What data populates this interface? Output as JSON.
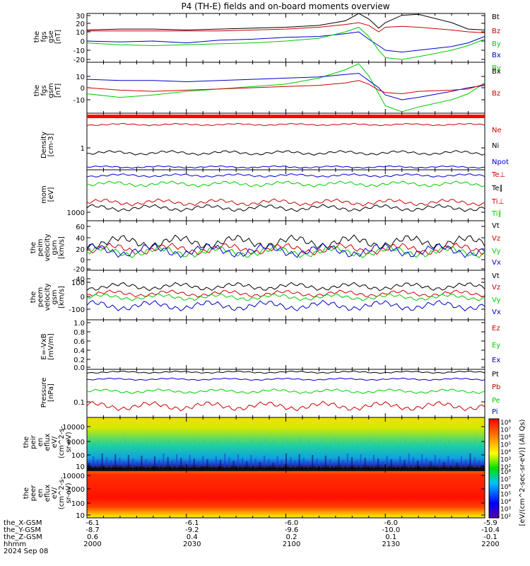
{
  "title": "P4 (TH-E) fields and on-board moments overview",
  "panels": [
    {
      "id": "fgs-gse",
      "ylabel": [
        "the",
        "fgs",
        "gse",
        "[nT]"
      ],
      "ticks": [
        "30",
        "20",
        "10",
        "0",
        "-10",
        "-20"
      ],
      "legend": [
        {
          "text": "Bt",
          "color": "#000000"
        },
        {
          "text": "Bz",
          "color": "#cc0000"
        },
        {
          "text": "By",
          "color": "#00cc00"
        },
        {
          "text": "Bx",
          "color": "#0000cc"
        }
      ]
    },
    {
      "id": "fgs-gsm",
      "ylabel": [
        "the",
        "fgs",
        "gsm",
        "[nT]"
      ],
      "ticks": [
        "10",
        "0",
        "-10"
      ],
      "legend": [
        {
          "text": "By",
          "color": "#00cc00"
        },
        {
          "text": "Bx",
          "color": "#000000"
        },
        {
          "text": "Bz",
          "color": "#cc0000"
        }
      ]
    },
    {
      "id": "density",
      "ylabel": [
        "Density",
        "[cm-3]"
      ],
      "ticks": [
        "1"
      ],
      "legend": [
        {
          "text": "Ne",
          "color": "#cc0000"
        },
        {
          "text": "Ni",
          "color": "#000000"
        },
        {
          "text": "Npot",
          "color": "#0000cc"
        }
      ]
    },
    {
      "id": "temp",
      "ylabel": [
        "mom",
        "[eV]"
      ],
      "ticks": [
        "1000"
      ],
      "legend": [
        {
          "text": "Te⊥",
          "color": "#cc0000"
        },
        {
          "text": "Te∥",
          "color": "#000000"
        },
        {
          "text": "Ti⊥",
          "color": "#cc0000"
        },
        {
          "text": "Ti∥",
          "color": "#00cc00"
        }
      ]
    },
    {
      "id": "peim-vel",
      "ylabel": [
        "the",
        "peim",
        "velocity",
        "gsm",
        "[km/s]"
      ],
      "ticks": [
        "60",
        "40",
        "20",
        "0",
        "-20",
        "-40"
      ],
      "legend": [
        {
          "text": "Vt",
          "color": "#000000"
        },
        {
          "text": "Vz",
          "color": "#cc0000"
        },
        {
          "text": "Vy",
          "color": "#00cc00"
        },
        {
          "text": "Vx",
          "color": "#0000cc"
        }
      ]
    },
    {
      "id": "peem-vel",
      "ylabel": [
        "the",
        "peem",
        "velocity",
        "gsm",
        "[km/s]"
      ],
      "ticks": [
        "100",
        "0",
        "-100"
      ],
      "legend": [
        {
          "text": "Vt",
          "color": "#000000"
        },
        {
          "text": "Vz",
          "color": "#cc0000"
        },
        {
          "text": "Vy",
          "color": "#00cc00"
        },
        {
          "text": "Vx",
          "color": "#0000cc"
        }
      ]
    },
    {
      "id": "efield",
      "ylabel": [
        "E=-VxB",
        "[mV/m]"
      ],
      "ticks": [
        "1.0",
        "0.8",
        "0.6",
        "0.4",
        "0.2",
        "0.0"
      ],
      "legend": [
        {
          "text": "Ez",
          "color": "#cc0000"
        },
        {
          "text": "Ey",
          "color": "#00cc00"
        },
        {
          "text": "Ex",
          "color": "#0000cc"
        }
      ]
    },
    {
      "id": "pressure",
      "ylabel": [
        "Pressure",
        "[nPa]"
      ],
      "ticks": [
        "0.1"
      ],
      "legend": [
        {
          "text": "Pt",
          "color": "#000000"
        },
        {
          "text": "Pb",
          "color": "#cc0000"
        },
        {
          "text": "Pe",
          "color": "#00cc00"
        },
        {
          "text": "Pi",
          "color": "#0000cc"
        }
      ]
    },
    {
      "id": "peir",
      "ylabel": [
        "the",
        "peir",
        "en",
        "eflux",
        "eV/",
        "(cm^2-s-",
        "sr-eV)"
      ],
      "ticks": [
        "10000",
        "1000",
        "100",
        "10"
      ],
      "legend": []
    },
    {
      "id": "peer",
      "ylabel": [
        "the",
        "peer",
        "en",
        "eflux",
        "eV/",
        "(cm^2-s-",
        "sr-eV)"
      ],
      "ticks": [
        "10000",
        "1000",
        "100",
        "10"
      ],
      "legend": []
    }
  ],
  "colorbar": {
    "label": "[eV/(cm^2-sec-sr-eV)] (All Qs)",
    "top_ticks": [
      "10⁸",
      "10⁷",
      "10⁶",
      "10⁵",
      "10⁴",
      "10³",
      "10²"
    ],
    "bottom_ticks": [
      "10⁸",
      "10⁷",
      "10⁶",
      "10⁵",
      "10⁴",
      "10³",
      "10²"
    ]
  },
  "xaxis": {
    "row_labels": [
      "the_X-GSM",
      "the_Y-GSM",
      "the_Z-GSM",
      "hhmm",
      "2024 Sep 08"
    ],
    "columns": [
      {
        "vals": [
          "-6.1",
          "-8.7",
          "0.6",
          "2000"
        ]
      },
      {
        "vals": [
          "-6.1",
          "-9.2",
          "0.4",
          "2030"
        ]
      },
      {
        "vals": [
          "-6.0",
          "-9.6",
          "0.2",
          "2100"
        ]
      },
      {
        "vals": [
          "-6.0",
          "-10.0",
          "0.1",
          "2130"
        ]
      },
      {
        "vals": [
          "-5.9",
          "-10.4",
          "-0.1",
          "2200"
        ]
      }
    ]
  },
  "chart_data": {
    "type": "line",
    "title": "P4 (TH-E) fields and on-board moments overview",
    "x_ticks": [
      "2000",
      "2030",
      "2100",
      "2130",
      "2200"
    ],
    "x_unit": "hhmm",
    "date": "2024 Sep 08",
    "series": {
      "fgs-gse": {
        "Bt": [
          [
            2000,
            12
          ],
          [
            2010,
            13
          ],
          [
            2020,
            13
          ],
          [
            2030,
            12
          ],
          [
            2040,
            13
          ],
          [
            2050,
            14
          ],
          [
            2100,
            15
          ],
          [
            2110,
            17
          ],
          [
            2118,
            22
          ],
          [
            2122,
            30
          ],
          [
            2125,
            24
          ],
          [
            2128,
            14
          ],
          [
            2130,
            20
          ],
          [
            2135,
            28
          ],
          [
            2140,
            29
          ],
          [
            2150,
            20
          ],
          [
            2155,
            13
          ],
          [
            2200,
            12
          ]
        ],
        "Bz": [
          [
            2000,
            11
          ],
          [
            2010,
            11
          ],
          [
            2020,
            11
          ],
          [
            2030,
            11
          ],
          [
            2040,
            11
          ],
          [
            2050,
            12
          ],
          [
            2100,
            13
          ],
          [
            2110,
            15
          ],
          [
            2118,
            18
          ],
          [
            2122,
            20
          ],
          [
            2125,
            17
          ],
          [
            2128,
            10
          ],
          [
            2130,
            15
          ],
          [
            2135,
            16
          ],
          [
            2140,
            15
          ],
          [
            2150,
            12
          ],
          [
            2155,
            10
          ],
          [
            2200,
            9
          ]
        ],
        "Bx": [
          [
            2000,
            0
          ],
          [
            2010,
            -1
          ],
          [
            2020,
            0
          ],
          [
            2030,
            -2
          ],
          [
            2040,
            1
          ],
          [
            2050,
            2
          ],
          [
            2100,
            4
          ],
          [
            2110,
            5
          ],
          [
            2118,
            8
          ],
          [
            2122,
            10
          ],
          [
            2125,
            2
          ],
          [
            2128,
            -5
          ],
          [
            2130,
            -10
          ],
          [
            2135,
            -12
          ],
          [
            2140,
            -10
          ],
          [
            2150,
            -6
          ],
          [
            2155,
            -2
          ],
          [
            2200,
            5
          ]
        ],
        "By": [
          [
            2000,
            -2
          ],
          [
            2010,
            -4
          ],
          [
            2020,
            -5
          ],
          [
            2030,
            -4
          ],
          [
            2040,
            -3
          ],
          [
            2050,
            -2
          ],
          [
            2100,
            0
          ],
          [
            2110,
            3
          ],
          [
            2118,
            10
          ],
          [
            2122,
            15
          ],
          [
            2125,
            5
          ],
          [
            2128,
            -10
          ],
          [
            2130,
            -18
          ],
          [
            2135,
            -20
          ],
          [
            2140,
            -17
          ],
          [
            2150,
            -10
          ],
          [
            2155,
            -5
          ],
          [
            2200,
            2
          ]
        ]
      },
      "fgs-gsm": {
        "By": [
          [
            2000,
            -5
          ],
          [
            2010,
            -8
          ],
          [
            2020,
            -6
          ],
          [
            2030,
            -3
          ],
          [
            2040,
            -1
          ],
          [
            2050,
            1
          ],
          [
            2100,
            3
          ],
          [
            2110,
            8
          ],
          [
            2118,
            15
          ],
          [
            2122,
            20
          ],
          [
            2125,
            10
          ],
          [
            2128,
            -5
          ],
          [
            2130,
            -15
          ],
          [
            2135,
            -20
          ],
          [
            2140,
            -16
          ],
          [
            2150,
            -10
          ],
          [
            2155,
            -5
          ],
          [
            2200,
            4
          ]
        ],
        "Bx": [
          [
            2000,
            7
          ],
          [
            2010,
            6
          ],
          [
            2020,
            6
          ],
          [
            2030,
            5
          ],
          [
            2040,
            6
          ],
          [
            2050,
            7
          ],
          [
            2100,
            8
          ],
          [
            2110,
            9
          ],
          [
            2118,
            11
          ],
          [
            2122,
            12
          ],
          [
            2125,
            6
          ],
          [
            2128,
            0
          ],
          [
            2130,
            -6
          ],
          [
            2135,
            -10
          ],
          [
            2140,
            -8
          ],
          [
            2150,
            -3
          ],
          [
            2155,
            0
          ],
          [
            2200,
            2
          ]
        ],
        "Bz": [
          [
            2000,
            0
          ],
          [
            2010,
            -2
          ],
          [
            2020,
            -3
          ],
          [
            2030,
            -2
          ],
          [
            2040,
            -1
          ],
          [
            2050,
            0
          ],
          [
            2100,
            1
          ],
          [
            2110,
            2
          ],
          [
            2118,
            4
          ],
          [
            2122,
            6
          ],
          [
            2125,
            3
          ],
          [
            2128,
            -2
          ],
          [
            2130,
            -4
          ],
          [
            2135,
            -5
          ],
          [
            2140,
            -3
          ],
          [
            2150,
            -2
          ],
          [
            2155,
            -1
          ],
          [
            2200,
            3
          ]
        ]
      }
    }
  }
}
